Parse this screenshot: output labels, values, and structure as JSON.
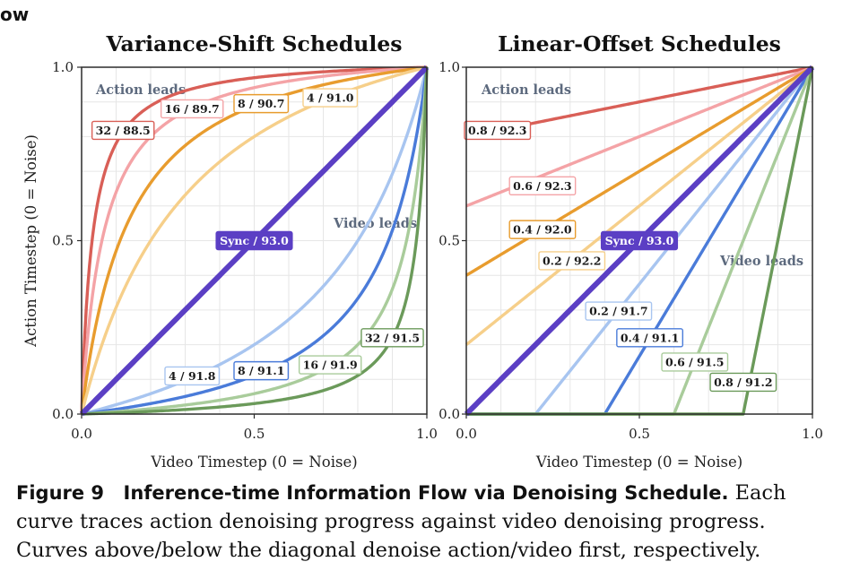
{
  "fragment": "ow",
  "caption": {
    "label": "Figure 9",
    "title": "Inference-time Information Flow via Denoising Schedule.",
    "text": "Each curve traces action denoising progress against video denoising progress. Curves above/below the diagonal denoise action/video first, respectively."
  },
  "colors": {
    "red": "#d95f57",
    "pink": "#f4a3a6",
    "orange": "#e89c2e",
    "peach": "#f6cf8a",
    "sync": "#5b3fc4",
    "lightblue": "#a8c5f0",
    "blue": "#4a7bd9",
    "lightgreen": "#a9cc9b",
    "green": "#6b9a5a"
  },
  "chart_data": [
    {
      "type": "line",
      "title": "Variance-Shift Schedules",
      "xlabel": "Video Timestep (0 = Noise)",
      "ylabel": "Action Timestep (0 = Noise)",
      "xlim": [
        0,
        1
      ],
      "ylim": [
        0,
        1
      ],
      "xticks": [
        "0.0",
        "0.5",
        "1.0"
      ],
      "yticks": [
        "0.0",
        "0.5",
        "1.0"
      ],
      "grid": true,
      "annotations": [
        "Action leads",
        "Video leads"
      ],
      "series": [
        {
          "kind": "shift",
          "param": 32,
          "side": "action",
          "label": "32 / 88.5",
          "color": "red",
          "label_at": [
            0.12,
            0.818
          ]
        },
        {
          "kind": "shift",
          "param": 16,
          "side": "action",
          "label": "16 / 89.7",
          "color": "pink",
          "label_at": [
            0.32,
            0.88
          ]
        },
        {
          "kind": "shift",
          "param": 8,
          "side": "action",
          "label": "8 / 90.7",
          "color": "orange",
          "label_at": [
            0.52,
            0.895
          ]
        },
        {
          "kind": "shift",
          "param": 4,
          "side": "action",
          "label": "4 / 91.0",
          "color": "peach",
          "label_at": [
            0.72,
            0.912
          ]
        },
        {
          "kind": "sync",
          "param": 1,
          "side": "sync",
          "label": "Sync / 93.0",
          "color": "sync",
          "label_at": [
            0.5,
            0.5
          ]
        },
        {
          "kind": "shift",
          "param": 4,
          "side": "video",
          "label": "4 / 91.8",
          "color": "lightblue",
          "label_at": [
            0.32,
            0.11
          ]
        },
        {
          "kind": "shift",
          "param": 8,
          "side": "video",
          "label": "8 / 91.1",
          "color": "blue",
          "label_at": [
            0.52,
            0.125
          ]
        },
        {
          "kind": "shift",
          "param": 16,
          "side": "video",
          "label": "16 / 91.9",
          "color": "lightgreen",
          "label_at": [
            0.72,
            0.142
          ]
        },
        {
          "kind": "shift",
          "param": 32,
          "side": "video",
          "label": "32 / 91.5",
          "color": "green",
          "label_at": [
            0.9,
            0.22
          ]
        }
      ]
    },
    {
      "type": "line",
      "title": "Linear-Offset Schedules",
      "xlabel": "Video Timestep (0 = Noise)",
      "ylabel": "",
      "xlim": [
        0,
        1
      ],
      "ylim": [
        0,
        1
      ],
      "xticks": [
        "0.0",
        "0.5",
        "1.0"
      ],
      "yticks": [],
      "grid": true,
      "annotations": [
        "Action leads",
        "Video leads"
      ],
      "series": [
        {
          "kind": "offset",
          "param": 0.8,
          "side": "action",
          "label": "0.8 / 92.3",
          "color": "red",
          "label_at": [
            0.09,
            0.818
          ]
        },
        {
          "kind": "offset",
          "param": 0.6,
          "side": "action",
          "label": "0.6 / 92.3",
          "color": "pink",
          "label_at": [
            0.22,
            0.658
          ]
        },
        {
          "kind": "offset",
          "param": 0.4,
          "side": "action",
          "label": "0.4 / 92.0",
          "color": "orange",
          "label_at": [
            0.22,
            0.532
          ]
        },
        {
          "kind": "offset",
          "param": 0.2,
          "side": "action",
          "label": "0.2 / 92.2",
          "color": "peach",
          "label_at": [
            0.305,
            0.442
          ]
        },
        {
          "kind": "sync",
          "param": 0,
          "side": "sync",
          "label": "Sync / 93.0",
          "color": "sync",
          "label_at": [
            0.5,
            0.5
          ]
        },
        {
          "kind": "offset",
          "param": 0.2,
          "side": "video",
          "label": "0.2 / 91.7",
          "color": "lightblue",
          "label_at": [
            0.44,
            0.297
          ]
        },
        {
          "kind": "offset",
          "param": 0.4,
          "side": "video",
          "label": "0.4 / 91.1",
          "color": "blue",
          "label_at": [
            0.53,
            0.22
          ]
        },
        {
          "kind": "offset",
          "param": 0.6,
          "side": "video",
          "label": "0.6 / 91.5",
          "color": "lightgreen",
          "label_at": [
            0.66,
            0.15
          ]
        },
        {
          "kind": "offset",
          "param": 0.8,
          "side": "video",
          "label": "0.8 / 91.2",
          "color": "green",
          "label_at": [
            0.8,
            0.092
          ]
        }
      ]
    }
  ]
}
